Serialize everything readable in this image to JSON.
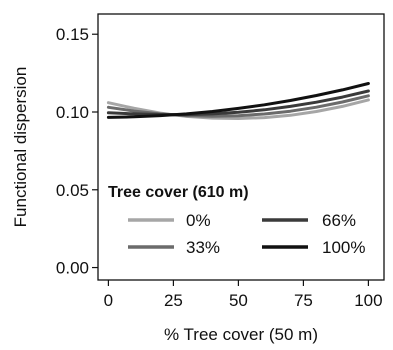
{
  "chart_data": {
    "type": "line",
    "xlabel": "% Tree cover (50 m)",
    "ylabel": "Functional dispersion",
    "xlim": [
      -4,
      106
    ],
    "ylim": [
      -0.008,
      0.163
    ],
    "xticks": [
      0,
      25,
      50,
      75,
      100
    ],
    "xtick_labels": [
      "0",
      "25",
      "50",
      "75",
      "100"
    ],
    "yticks": [
      0.0,
      0.05,
      0.1,
      0.15
    ],
    "ytick_labels": [
      "0.00",
      "0.05",
      "0.10",
      "0.15"
    ],
    "grid": false,
    "legend": {
      "title": "Tree cover (610 m)",
      "placement": "bottom-center",
      "columns": 2
    },
    "x": [
      0,
      10,
      20,
      25,
      30,
      40,
      50,
      60,
      70,
      80,
      90,
      100
    ],
    "series": [
      {
        "name": "0%",
        "color": "#a6a6a6",
        "values": [
          0.106,
          0.1023,
          0.0993,
          0.0982,
          0.0972,
          0.0961,
          0.0958,
          0.0964,
          0.0979,
          0.1003,
          0.1036,
          0.1078
        ]
      },
      {
        "name": "33%",
        "color": "#6b6b6b",
        "values": [
          0.103,
          0.1006,
          0.0988,
          0.0982,
          0.0977,
          0.0973,
          0.0976,
          0.0987,
          0.1005,
          0.1031,
          0.1064,
          0.1104
        ]
      },
      {
        "name": "66%",
        "color": "#3a3a3a",
        "values": [
          0.0995,
          0.0988,
          0.0984,
          0.0983,
          0.0983,
          0.0988,
          0.0998,
          0.1014,
          0.1036,
          0.1063,
          0.1096,
          0.1135
        ]
      },
      {
        "name": "100%",
        "color": "#111111",
        "values": [
          0.0965,
          0.0969,
          0.0977,
          0.0982,
          0.0988,
          0.1003,
          0.1023,
          0.1046,
          0.1074,
          0.1106,
          0.1142,
          0.1183
        ]
      }
    ]
  }
}
